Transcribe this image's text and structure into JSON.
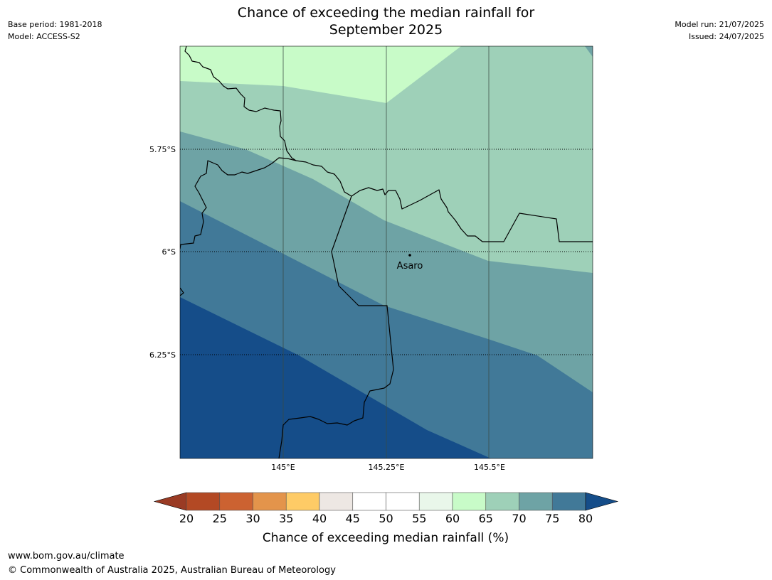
{
  "title_line1": "Chance of exceeding the median rainfall for",
  "title_line2": "September 2025",
  "meta_left": {
    "base_period": "Base period: 1981-2018",
    "model": "Model: ACCESS-S2"
  },
  "meta_right": {
    "model_run": "Model run: 21/07/2025",
    "issued": "Issued: 24/07/2025"
  },
  "map": {
    "lat_ticks": [
      {
        "label": "5.75°S"
      },
      {
        "label": "6°S"
      },
      {
        "label": "6.25°S"
      }
    ],
    "lon_ticks": [
      {
        "label": "145°E"
      },
      {
        "label": "145.25°E"
      },
      {
        "label": "145.5°E"
      }
    ],
    "place": {
      "name": "Asaro"
    }
  },
  "colorbar": {
    "label": "Chance of exceeding median rainfall (%)",
    "tick_labels": [
      "20",
      "25",
      "30",
      "35",
      "40",
      "45",
      "50",
      "55",
      "60",
      "65",
      "70",
      "75",
      "80"
    ],
    "under_color": "#9a3b24",
    "over_color": "#154d89",
    "colors": [
      "#b34924",
      "#cc6231",
      "#e3944b",
      "#fecb66",
      "#ede7e3",
      "#ffffff",
      "#ffffff",
      "#e9f7ea",
      "#c8fbc8",
      "#9ed0b8",
      "#6ea3a5",
      "#417998"
    ]
  },
  "footer": {
    "url": "www.bom.gov.au/climate",
    "copyright": "© Commonwealth of Australia 2025, Australian Bureau of Meteorology"
  }
}
